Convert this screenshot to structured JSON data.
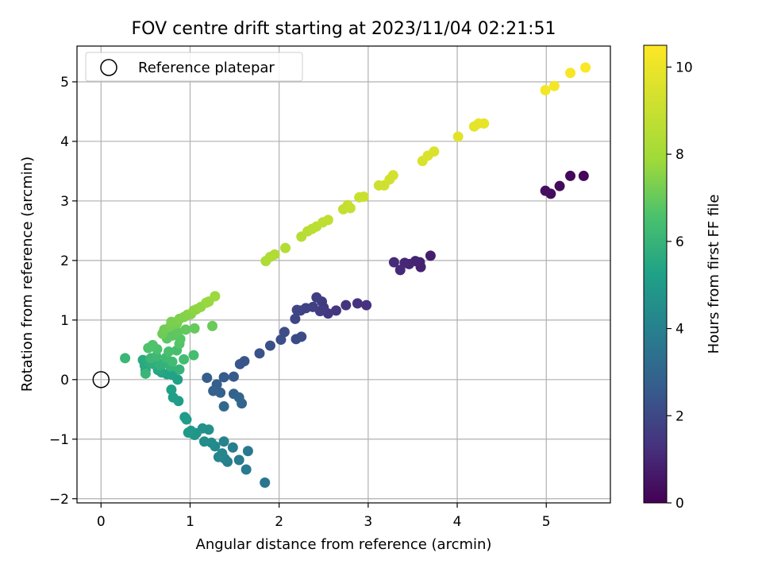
{
  "chart_data": {
    "type": "scatter",
    "title": "FOV centre drift starting at 2023/11/04 02:21:51",
    "xlabel": "Angular distance from reference (arcmin)",
    "ylabel": "Rotation from reference (arcmin)",
    "xlim": [
      -0.27,
      5.72
    ],
    "ylim": [
      -2.07,
      5.6
    ],
    "xticks": [
      0,
      1,
      2,
      3,
      4,
      5
    ],
    "yticks": [
      -2,
      -1,
      0,
      1,
      2,
      3,
      4,
      5
    ],
    "grid": true,
    "legend": {
      "position": "top-left",
      "entries": [
        "Reference platepar"
      ]
    },
    "reference_point": {
      "x": 0,
      "y": 0,
      "label": "Reference platepar"
    },
    "colorbar": {
      "label": "Hours from first FF file",
      "colormap": "viridis",
      "range": [
        0,
        10.5
      ],
      "ticks": [
        0,
        2,
        4,
        6,
        8,
        10
      ]
    },
    "points": [
      [
        5.42,
        3.42,
        0.15
      ],
      [
        5.27,
        3.42,
        0.2
      ],
      [
        5.15,
        3.25,
        0.25
      ],
      [
        5.05,
        3.12,
        0.3
      ],
      [
        4.99,
        3.17,
        0.35
      ],
      [
        3.7,
        2.08,
        0.8
      ],
      [
        3.59,
        1.89,
        0.85
      ],
      [
        3.58,
        1.97,
        0.9
      ],
      [
        3.53,
        1.99,
        0.95
      ],
      [
        3.46,
        1.94,
        1.0
      ],
      [
        3.41,
        1.96,
        1.05
      ],
      [
        3.36,
        1.84,
        1.1
      ],
      [
        3.29,
        1.97,
        1.15
      ],
      [
        2.98,
        1.25,
        1.3
      ],
      [
        2.88,
        1.28,
        1.35
      ],
      [
        2.75,
        1.25,
        1.4
      ],
      [
        2.64,
        1.16,
        1.45
      ],
      [
        2.55,
        1.11,
        1.5
      ],
      [
        2.5,
        1.21,
        1.55
      ],
      [
        2.48,
        1.31,
        1.6
      ],
      [
        2.46,
        1.15,
        1.65
      ],
      [
        2.42,
        1.38,
        1.7
      ],
      [
        2.38,
        1.22,
        1.75
      ],
      [
        2.3,
        1.2,
        1.8
      ],
      [
        2.24,
        1.16,
        1.85
      ],
      [
        2.2,
        1.17,
        1.9
      ],
      [
        2.18,
        1.02,
        1.95
      ],
      [
        2.25,
        0.72,
        2.05
      ],
      [
        2.19,
        0.68,
        2.1
      ],
      [
        2.06,
        0.8,
        2.15
      ],
      [
        2.02,
        0.67,
        2.2
      ],
      [
        1.9,
        0.57,
        2.25
      ],
      [
        1.78,
        0.44,
        2.3
      ],
      [
        1.61,
        0.31,
        2.4
      ],
      [
        1.56,
        0.26,
        2.45
      ],
      [
        1.49,
        0.05,
        2.55
      ],
      [
        1.38,
        0.04,
        2.6
      ],
      [
        1.19,
        0.03,
        2.7
      ],
      [
        1.3,
        -0.08,
        2.75
      ],
      [
        1.26,
        -0.19,
        2.8
      ],
      [
        1.34,
        -0.22,
        2.85
      ],
      [
        1.49,
        -0.24,
        2.9
      ],
      [
        1.55,
        -0.3,
        2.95
      ],
      [
        1.58,
        -0.4,
        3.0
      ],
      [
        1.38,
        -0.45,
        3.05
      ],
      [
        1.84,
        -1.73,
        3.6
      ],
      [
        1.65,
        -1.2,
        3.7
      ],
      [
        1.63,
        -1.51,
        3.75
      ],
      [
        1.55,
        -1.35,
        3.8
      ],
      [
        1.48,
        -1.14,
        3.9
      ],
      [
        1.42,
        -1.38,
        3.95
      ],
      [
        1.39,
        -1.33,
        4.0
      ],
      [
        1.38,
        -1.04,
        4.1
      ],
      [
        1.36,
        -1.24,
        4.15
      ],
      [
        1.32,
        -1.3,
        4.2
      ],
      [
        1.28,
        -1.12,
        4.3
      ],
      [
        1.24,
        -1.06,
        4.4
      ],
      [
        1.16,
        -1.04,
        4.5
      ],
      [
        1.21,
        -0.84,
        4.6
      ],
      [
        1.14,
        -0.82,
        4.65
      ],
      [
        1.07,
        -0.9,
        4.75
      ],
      [
        1.05,
        -0.93,
        4.8
      ],
      [
        1.01,
        -0.86,
        4.9
      ],
      [
        0.98,
        -0.89,
        4.95
      ],
      [
        0.96,
        -0.67,
        5.0
      ],
      [
        0.94,
        -0.63,
        5.05
      ],
      [
        0.87,
        -0.36,
        5.1
      ],
      [
        0.81,
        -0.3,
        5.15
      ],
      [
        0.79,
        -0.17,
        5.2
      ],
      [
        0.86,
        0.0,
        5.25
      ],
      [
        0.8,
        0.08,
        5.3
      ],
      [
        0.74,
        0.09,
        5.35
      ],
      [
        0.68,
        0.12,
        5.4
      ],
      [
        0.64,
        0.16,
        5.45
      ],
      [
        0.5,
        0.16,
        5.5
      ],
      [
        0.49,
        0.24,
        5.55
      ],
      [
        0.47,
        0.33,
        5.6
      ],
      [
        0.52,
        0.31,
        5.65
      ],
      [
        0.55,
        0.28,
        5.7
      ],
      [
        0.59,
        0.26,
        5.75
      ],
      [
        0.62,
        0.3,
        5.8
      ],
      [
        0.66,
        0.24,
        5.85
      ],
      [
        0.7,
        0.27,
        5.9
      ],
      [
        0.78,
        0.22,
        5.95
      ],
      [
        0.88,
        0.17,
        6.0
      ],
      [
        0.5,
        0.1,
        6.05
      ],
      [
        0.27,
        0.36,
        6.1
      ],
      [
        0.56,
        0.36,
        6.15
      ],
      [
        0.62,
        0.39,
        6.2
      ],
      [
        0.73,
        0.37,
        6.25
      ],
      [
        0.8,
        0.3,
        6.3
      ],
      [
        0.93,
        0.34,
        6.35
      ],
      [
        1.04,
        0.41,
        6.4
      ],
      [
        0.85,
        0.49,
        6.45
      ],
      [
        0.76,
        0.47,
        6.5
      ],
      [
        0.63,
        0.51,
        6.55
      ],
      [
        0.53,
        0.53,
        6.6
      ],
      [
        0.58,
        0.58,
        6.65
      ],
      [
        0.88,
        0.6,
        6.7
      ],
      [
        0.89,
        0.68,
        6.75
      ],
      [
        0.74,
        0.69,
        6.8
      ],
      [
        0.8,
        0.74,
        6.85
      ],
      [
        0.86,
        0.8,
        6.9
      ],
      [
        0.95,
        0.84,
        6.95
      ],
      [
        1.05,
        0.86,
        7.0
      ],
      [
        1.25,
        0.9,
        7.05
      ],
      [
        0.69,
        0.77,
        7.1
      ],
      [
        0.71,
        0.84,
        7.15
      ],
      [
        0.78,
        0.9,
        7.2
      ],
      [
        0.85,
        0.94,
        7.25
      ],
      [
        0.79,
        0.97,
        7.3
      ],
      [
        0.88,
        1.02,
        7.35
      ],
      [
        0.93,
        1.05,
        7.4
      ],
      [
        0.97,
        1.09,
        7.45
      ],
      [
        1.01,
        1.1,
        7.5
      ],
      [
        1.04,
        1.16,
        7.55
      ],
      [
        1.07,
        1.18,
        7.6
      ],
      [
        1.12,
        1.22,
        7.65
      ],
      [
        1.18,
        1.29,
        7.7
      ],
      [
        1.21,
        1.31,
        7.75
      ],
      [
        1.28,
        1.4,
        7.8
      ],
      [
        1.85,
        1.99,
        8.25
      ],
      [
        1.9,
        2.06,
        8.3
      ],
      [
        1.95,
        2.1,
        8.35
      ],
      [
        2.07,
        2.21,
        8.4
      ],
      [
        2.25,
        2.4,
        8.5
      ],
      [
        2.32,
        2.49,
        8.55
      ],
      [
        2.37,
        2.53,
        8.6
      ],
      [
        2.42,
        2.57,
        8.65
      ],
      [
        2.49,
        2.64,
        8.7
      ],
      [
        2.55,
        2.68,
        8.75
      ],
      [
        2.72,
        2.86,
        8.85
      ],
      [
        2.77,
        2.93,
        8.9
      ],
      [
        2.8,
        2.88,
        8.95
      ],
      [
        2.9,
        3.06,
        9.0
      ],
      [
        2.95,
        3.07,
        9.05
      ],
      [
        3.12,
        3.26,
        9.15
      ],
      [
        3.18,
        3.26,
        9.2
      ],
      [
        3.24,
        3.36,
        9.25
      ],
      [
        3.28,
        3.43,
        9.3
      ],
      [
        3.61,
        3.67,
        9.45
      ],
      [
        3.67,
        3.76,
        9.5
      ],
      [
        3.74,
        3.83,
        9.55
      ],
      [
        4.01,
        4.08,
        9.7
      ],
      [
        4.19,
        4.25,
        9.8
      ],
      [
        4.24,
        4.3,
        9.85
      ],
      [
        4.3,
        4.3,
        9.9
      ],
      [
        4.99,
        4.86,
        10.2
      ],
      [
        5.09,
        4.93,
        10.25
      ],
      [
        5.27,
        5.15,
        10.35
      ],
      [
        5.44,
        5.24,
        10.45
      ]
    ]
  }
}
